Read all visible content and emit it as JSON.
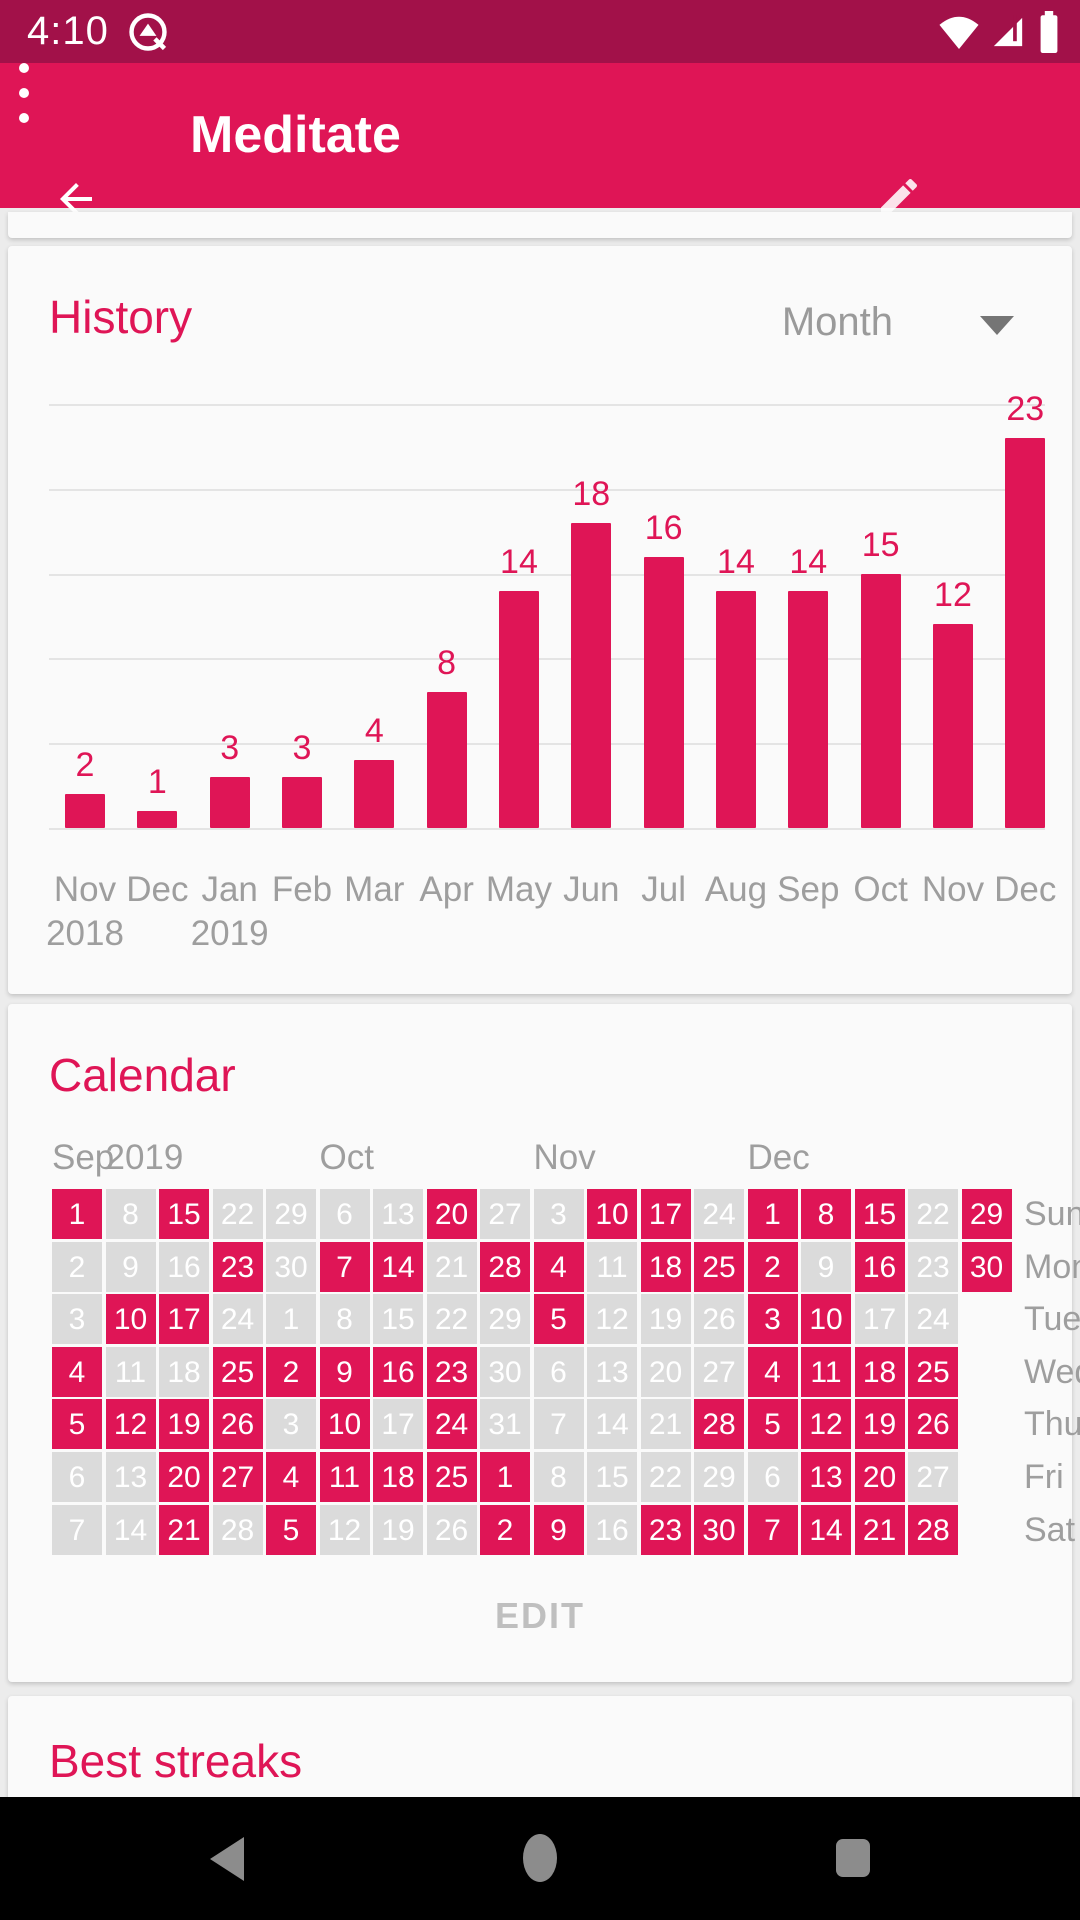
{
  "colors": {
    "primary": "#DF1556",
    "primary_dark": "#A21149",
    "card_bg": "#FAFAFA",
    "page_bg": "#ECECEC",
    "grid_line": "#E4E4E4",
    "muted_text": "#9E9E9E",
    "cell_unchecked": "#DBDBDB",
    "edit_text": "#BFBFBF",
    "nav_icon": "#8C8C8C"
  },
  "status_bar": {
    "time": "4:10",
    "icons": [
      "android-q-icon",
      "wifi-icon",
      "cellular-signal-icon",
      "battery-icon"
    ]
  },
  "app_bar": {
    "title": "Meditate",
    "actions": [
      "back-arrow",
      "edit-pencil",
      "overflow-menu"
    ]
  },
  "history": {
    "title": "History",
    "range_selector": {
      "value": "Month"
    },
    "chart_data": {
      "type": "bar",
      "x": [
        {
          "label": "Nov",
          "year": "2018"
        },
        {
          "label": "Dec"
        },
        {
          "label": "Jan",
          "year": "2019"
        },
        {
          "label": "Feb"
        },
        {
          "label": "Mar"
        },
        {
          "label": "Apr"
        },
        {
          "label": "May"
        },
        {
          "label": "Jun"
        },
        {
          "label": "Jul"
        },
        {
          "label": "Aug"
        },
        {
          "label": "Sep"
        },
        {
          "label": "Oct"
        },
        {
          "label": "Nov"
        },
        {
          "label": "Dec"
        }
      ],
      "values": [
        2,
        1,
        3,
        3,
        4,
        8,
        14,
        18,
        16,
        14,
        14,
        15,
        12,
        23
      ],
      "ylim": [
        0,
        25
      ],
      "grid_step": 5,
      "value_labels": true,
      "bar_color": "#DF1556",
      "legend": "none"
    }
  },
  "calendar": {
    "title": "Calendar",
    "month_headers": [
      {
        "label": "Sep",
        "col": 1
      },
      {
        "label": "2019",
        "col": 2
      },
      {
        "label": "Oct",
        "col": 6
      },
      {
        "label": "Nov",
        "col": 10
      },
      {
        "label": "Dec",
        "col": 14
      }
    ],
    "rows": [
      {
        "weekday": "Sun",
        "cells": [
          {
            "d": 1,
            "on": true
          },
          {
            "d": 8,
            "on": false
          },
          {
            "d": 15,
            "on": true
          },
          {
            "d": 22,
            "on": false
          },
          {
            "d": 29,
            "on": false
          },
          {
            "d": 6,
            "on": false
          },
          {
            "d": 13,
            "on": false
          },
          {
            "d": 20,
            "on": true
          },
          {
            "d": 27,
            "on": false
          },
          {
            "d": 3,
            "on": false
          },
          {
            "d": 10,
            "on": true
          },
          {
            "d": 17,
            "on": true
          },
          {
            "d": 24,
            "on": false
          },
          {
            "d": 1,
            "on": true
          },
          {
            "d": 8,
            "on": true
          },
          {
            "d": 15,
            "on": true
          },
          {
            "d": 22,
            "on": false
          },
          {
            "d": 29,
            "on": true
          }
        ]
      },
      {
        "weekday": "Mon",
        "cells": [
          {
            "d": 2,
            "on": false
          },
          {
            "d": 9,
            "on": false
          },
          {
            "d": 16,
            "on": false
          },
          {
            "d": 23,
            "on": true
          },
          {
            "d": 30,
            "on": false
          },
          {
            "d": 7,
            "on": true
          },
          {
            "d": 14,
            "on": true
          },
          {
            "d": 21,
            "on": false
          },
          {
            "d": 28,
            "on": true
          },
          {
            "d": 4,
            "on": true
          },
          {
            "d": 11,
            "on": false
          },
          {
            "d": 18,
            "on": true
          },
          {
            "d": 25,
            "on": true
          },
          {
            "d": 2,
            "on": true
          },
          {
            "d": 9,
            "on": false
          },
          {
            "d": 16,
            "on": true
          },
          {
            "d": 23,
            "on": false
          },
          {
            "d": 30,
            "on": true
          }
        ]
      },
      {
        "weekday": "Tue",
        "cells": [
          {
            "d": 3,
            "on": false
          },
          {
            "d": 10,
            "on": true
          },
          {
            "d": 17,
            "on": true
          },
          {
            "d": 24,
            "on": false
          },
          {
            "d": 1,
            "on": false
          },
          {
            "d": 8,
            "on": false
          },
          {
            "d": 15,
            "on": false
          },
          {
            "d": 22,
            "on": false
          },
          {
            "d": 29,
            "on": false
          },
          {
            "d": 5,
            "on": true
          },
          {
            "d": 12,
            "on": false
          },
          {
            "d": 19,
            "on": false
          },
          {
            "d": 26,
            "on": false
          },
          {
            "d": 3,
            "on": true
          },
          {
            "d": 10,
            "on": true
          },
          {
            "d": 17,
            "on": false
          },
          {
            "d": 24,
            "on": false
          }
        ]
      },
      {
        "weekday": "Wed",
        "cells": [
          {
            "d": 4,
            "on": true
          },
          {
            "d": 11,
            "on": false
          },
          {
            "d": 18,
            "on": false
          },
          {
            "d": 25,
            "on": true
          },
          {
            "d": 2,
            "on": true
          },
          {
            "d": 9,
            "on": true
          },
          {
            "d": 16,
            "on": true
          },
          {
            "d": 23,
            "on": true
          },
          {
            "d": 30,
            "on": false
          },
          {
            "d": 6,
            "on": false
          },
          {
            "d": 13,
            "on": false
          },
          {
            "d": 20,
            "on": false
          },
          {
            "d": 27,
            "on": false
          },
          {
            "d": 4,
            "on": true
          },
          {
            "d": 11,
            "on": true
          },
          {
            "d": 18,
            "on": true
          },
          {
            "d": 25,
            "on": true
          }
        ]
      },
      {
        "weekday": "Thu",
        "cells": [
          {
            "d": 5,
            "on": true
          },
          {
            "d": 12,
            "on": true
          },
          {
            "d": 19,
            "on": true
          },
          {
            "d": 26,
            "on": true
          },
          {
            "d": 3,
            "on": false
          },
          {
            "d": 10,
            "on": true
          },
          {
            "d": 17,
            "on": false
          },
          {
            "d": 24,
            "on": true
          },
          {
            "d": 31,
            "on": false
          },
          {
            "d": 7,
            "on": false
          },
          {
            "d": 14,
            "on": false
          },
          {
            "d": 21,
            "on": false
          },
          {
            "d": 28,
            "on": true
          },
          {
            "d": 5,
            "on": true
          },
          {
            "d": 12,
            "on": true
          },
          {
            "d": 19,
            "on": true
          },
          {
            "d": 26,
            "on": true
          }
        ]
      },
      {
        "weekday": "Fri",
        "cells": [
          {
            "d": 6,
            "on": false
          },
          {
            "d": 13,
            "on": false
          },
          {
            "d": 20,
            "on": true
          },
          {
            "d": 27,
            "on": true
          },
          {
            "d": 4,
            "on": true
          },
          {
            "d": 11,
            "on": true
          },
          {
            "d": 18,
            "on": true
          },
          {
            "d": 25,
            "on": true
          },
          {
            "d": 1,
            "on": true
          },
          {
            "d": 8,
            "on": false
          },
          {
            "d": 15,
            "on": false
          },
          {
            "d": 22,
            "on": false
          },
          {
            "d": 29,
            "on": false
          },
          {
            "d": 6,
            "on": false
          },
          {
            "d": 13,
            "on": true
          },
          {
            "d": 20,
            "on": true
          },
          {
            "d": 27,
            "on": false
          }
        ]
      },
      {
        "weekday": "Sat",
        "cells": [
          {
            "d": 7,
            "on": false
          },
          {
            "d": 14,
            "on": false
          },
          {
            "d": 21,
            "on": true
          },
          {
            "d": 28,
            "on": false
          },
          {
            "d": 5,
            "on": true
          },
          {
            "d": 12,
            "on": false
          },
          {
            "d": 19,
            "on": false
          },
          {
            "d": 26,
            "on": false
          },
          {
            "d": 2,
            "on": true
          },
          {
            "d": 9,
            "on": true
          },
          {
            "d": 16,
            "on": false
          },
          {
            "d": 23,
            "on": true
          },
          {
            "d": 30,
            "on": true
          },
          {
            "d": 7,
            "on": true
          },
          {
            "d": 14,
            "on": true
          },
          {
            "d": 21,
            "on": true
          },
          {
            "d": 28,
            "on": true
          }
        ]
      }
    ],
    "edit_label": "EDIT"
  },
  "best_streaks": {
    "title": "Best streaks"
  }
}
